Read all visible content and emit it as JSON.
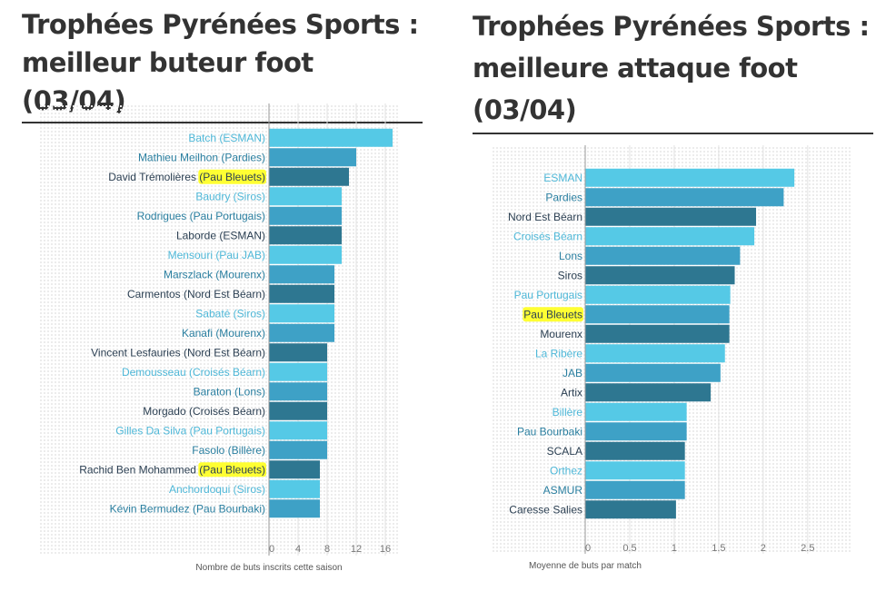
{
  "colors": {
    "light": "#55c9e6",
    "mid": "#3ea1c6",
    "dark": "#2e7791",
    "highlight": "#ffff33",
    "label_light": "#4fb8d8",
    "label_mid": "#2a7fa0",
    "label_dark": "#2b3f52"
  },
  "chart_data": [
    {
      "type": "bar",
      "orientation": "horizontal",
      "title": "Trophées Pyrénées Sports : meilleur buteur foot (03/04)",
      "title_lines": [
        "Trophées Pyrénées Sports :",
        "meilleur buteur foot (03/04)"
      ],
      "xlabel": "Nombre de buts inscrits cette saison",
      "xlim": [
        0,
        18
      ],
      "xticks": [
        "0",
        "4",
        "8",
        "12",
        "16"
      ],
      "xtick_values": [
        0,
        4,
        8,
        12,
        16
      ],
      "grid": true,
      "categories": [
        "Batch (ESMAN)",
        "Mathieu Meilhon (Pardies)",
        "David Trémolières (Pau Bleuets)",
        "Baudry (Siros)",
        "Rodrigues (Pau Portugais)",
        "Laborde (ESMAN)",
        "Mensouri (Pau JAB)",
        "Marszlack (Mourenx)",
        "Carmentos (Nord Est Béarn)",
        "Sabaté (Siros)",
        "Kanafi (Mourenx)",
        "Vincent Lesfauries (Nord Est Béarn)",
        "Demousseau (Croisés Béarn)",
        "Baraton (Lons)",
        "Morgado (Croisés Béarn)",
        "Gilles Da Silva (Pau Portugais)",
        "Fasolo (Billère)",
        "Rachid Ben Mohammed (Pau Bleuets)",
        "Anchordoqui (Siros)",
        "Kévin Bermudez (Pau Bourbaki)"
      ],
      "label_parts": [
        [
          "Batch (ESMAN)"
        ],
        [
          "Mathieu Meilhon (Pardies)"
        ],
        [
          "David Trémolières ",
          "(Pau Bleuets)"
        ],
        [
          "Baudry (Siros)"
        ],
        [
          "Rodrigues (Pau Portugais)"
        ],
        [
          "Laborde (ESMAN)"
        ],
        [
          "Mensouri (Pau JAB)"
        ],
        [
          "Marszlack (Mourenx)"
        ],
        [
          "Carmentos (Nord Est Béarn)"
        ],
        [
          "Sabaté (Siros)"
        ],
        [
          "Kanafi (Mourenx)"
        ],
        [
          "Vincent Lesfauries (Nord Est Béarn)"
        ],
        [
          "Demousseau (Croisés Béarn)"
        ],
        [
          "Baraton (Lons)"
        ],
        [
          "Morgado (Croisés Béarn)"
        ],
        [
          "Gilles Da Silva (Pau Portugais)"
        ],
        [
          "Fasolo (Billère)"
        ],
        [
          "Rachid Ben Mohammed ",
          "(Pau Bleuets)"
        ],
        [
          "Anchordoqui (Siros)"
        ],
        [
          "Kévin Bermudez (Pau Bourbaki)"
        ]
      ],
      "highlighted": [
        "David Trémolières (Pau Bleuets)",
        "Rachid Ben Mohammed (Pau Bleuets)"
      ],
      "values": [
        17,
        12,
        11,
        10,
        10,
        10,
        10,
        9,
        9,
        9,
        9,
        8,
        8,
        8,
        8,
        8,
        8,
        7,
        7,
        7
      ],
      "shades": [
        "light",
        "mid",
        "dark",
        "light",
        "mid",
        "dark",
        "light",
        "mid",
        "dark",
        "light",
        "mid",
        "dark",
        "light",
        "mid",
        "dark",
        "light",
        "mid",
        "dark",
        "light",
        "mid"
      ]
    },
    {
      "type": "bar",
      "orientation": "horizontal",
      "title": "Trophées Pyrénées Sports : meilleure attaque foot (03/04)",
      "title_lines": [
        "Trophées Pyrénées Sports :",
        "meilleure attaque foot",
        "(03/04)"
      ],
      "xlabel": "Moyenne de buts par match",
      "xlim": [
        0,
        2.9
      ],
      "xticks": [
        "0",
        "0.5",
        "1",
        "1.5",
        "2",
        "2.5"
      ],
      "xtick_values": [
        0,
        0.5,
        1,
        1.5,
        2,
        2.5
      ],
      "grid": true,
      "categories": [
        "ESMAN",
        "Pardies",
        "Nord Est Béarn",
        "Croisés Béarn",
        "Lons",
        "Siros",
        "Pau Portugais",
        "Pau Bleuets",
        "Mourenx",
        "La Ribère",
        "JAB",
        "Artix",
        "Billère",
        "Pau Bourbaki",
        "SCALA",
        "Orthez",
        "ASMUR",
        "Caresse Salies"
      ],
      "label_parts": [
        [
          "ESMAN"
        ],
        [
          "Pardies"
        ],
        [
          "Nord Est Béarn"
        ],
        [
          "Croisés Béarn"
        ],
        [
          "Lons"
        ],
        [
          "Siros"
        ],
        [
          "Pau Portugais"
        ],
        [
          "",
          "Pau Bleuets"
        ],
        [
          "Mourenx"
        ],
        [
          "La Ribère"
        ],
        [
          "JAB"
        ],
        [
          "Artix"
        ],
        [
          "Billère"
        ],
        [
          "Pau Bourbaki"
        ],
        [
          "SCALA"
        ],
        [
          "Orthez"
        ],
        [
          "ASMUR"
        ],
        [
          "Caresse Salies"
        ]
      ],
      "highlighted": [
        "Pau Bleuets"
      ],
      "values": [
        2.35,
        2.23,
        1.92,
        1.9,
        1.74,
        1.68,
        1.63,
        1.62,
        1.62,
        1.57,
        1.52,
        1.41,
        1.14,
        1.14,
        1.12,
        1.12,
        1.12,
        1.02
      ],
      "shades": [
        "light",
        "mid",
        "dark",
        "light",
        "mid",
        "dark",
        "light",
        "mid",
        "dark",
        "light",
        "mid",
        "dark",
        "light",
        "mid",
        "dark",
        "light",
        "mid",
        "dark"
      ]
    }
  ]
}
